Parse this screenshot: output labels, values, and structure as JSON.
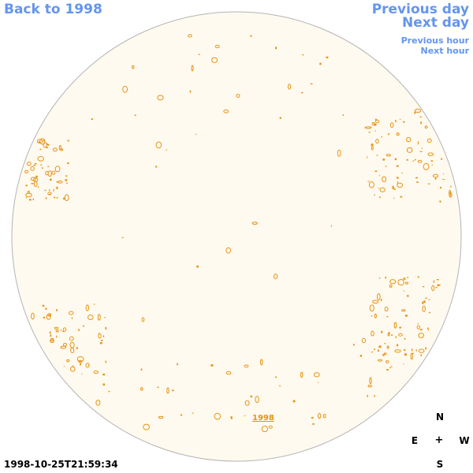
{
  "nav": {
    "back_label": "Back to 1998",
    "prev_day_label": "Previous day",
    "next_day_label": "Next day",
    "prev_hour_label": "Previous hour",
    "next_hour_label": "Next hour"
  },
  "disk": {
    "marker_label": "1998"
  },
  "compass": {
    "north": "N",
    "east": "E",
    "center": "+",
    "west": "W",
    "south": "S"
  },
  "timestamp": "1998-10-25T21:59:34",
  "colors": {
    "disk_fill": "#fffaf0",
    "disk_stroke": "#b4b4b4",
    "feature": "#e8920f",
    "link": "#6495ed"
  }
}
